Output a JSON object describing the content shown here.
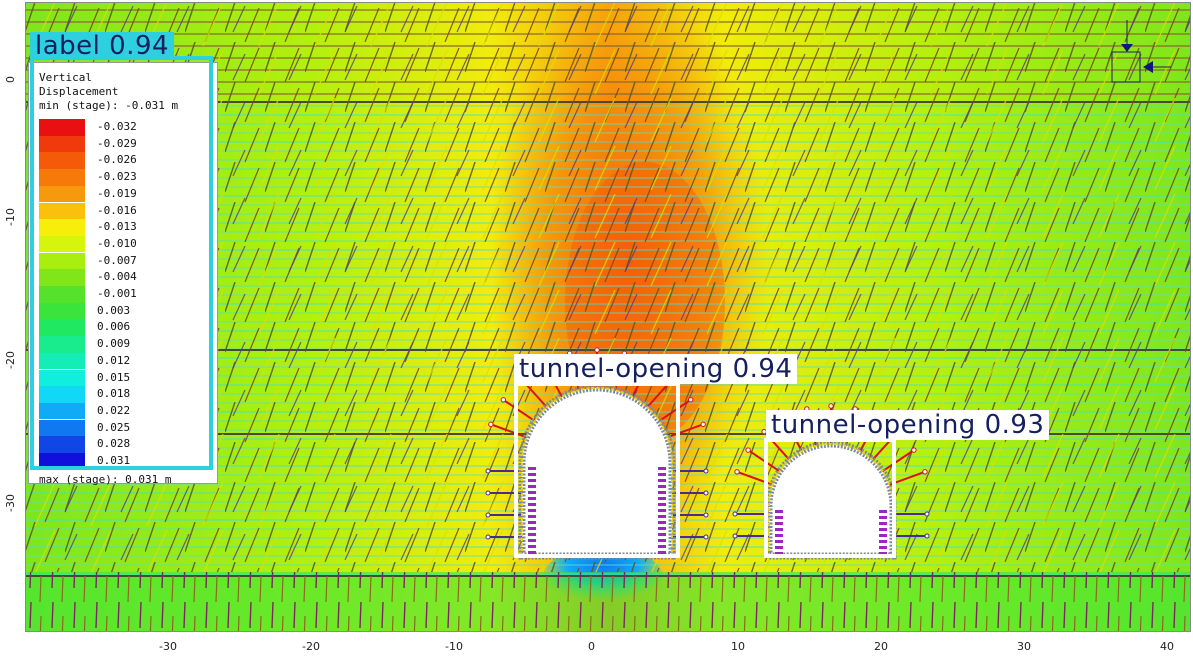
{
  "legend": {
    "title_line1": "Vertical",
    "title_line2": "Displacement",
    "title_line3": "min (stage): -0.031 m",
    "bottom_text": "max (stage): 0.031 m",
    "entries": [
      {
        "value": "-0.032",
        "color": "#e81010"
      },
      {
        "value": "-0.029",
        "color": "#f03a0c"
      },
      {
        "value": "-0.026",
        "color": "#f45a08"
      },
      {
        "value": "-0.023",
        "color": "#f57a0a"
      },
      {
        "value": "-0.019",
        "color": "#f7990c"
      },
      {
        "value": "-0.016",
        "color": "#f9c00c"
      },
      {
        "value": "-0.013",
        "color": "#f7ee0c"
      },
      {
        "value": "-0.010",
        "color": "#d6f50c"
      },
      {
        "value": "-0.007",
        "color": "#a8ef10"
      },
      {
        "value": "-0.004",
        "color": "#80e61a"
      },
      {
        "value": "-0.001",
        "color": "#56e22a"
      },
      {
        "value": "0.003",
        "color": "#3ae43a"
      },
      {
        "value": "0.006",
        "color": "#20e860"
      },
      {
        "value": "0.009",
        "color": "#18ec8c"
      },
      {
        "value": "0.012",
        "color": "#14eeb6"
      },
      {
        "value": "0.015",
        "color": "#10eede"
      },
      {
        "value": "0.018",
        "color": "#10d8f6"
      },
      {
        "value": "0.022",
        "color": "#10aaf6"
      },
      {
        "value": "0.025",
        "color": "#1078f0"
      },
      {
        "value": "0.028",
        "color": "#1046e6"
      },
      {
        "value": "0.031",
        "color": "#1010dc"
      }
    ]
  },
  "detections": {
    "label_tag": "label 0.94",
    "tunnel1_tag": "tunnel-opening 0.94",
    "tunnel2_tag": "tunnel-opening 0.93"
  },
  "axes": {
    "x_ticks": [
      "-30",
      "-20",
      "-10",
      "0",
      "10",
      "20",
      "30",
      "40"
    ],
    "y_ticks": [
      "0",
      "-10",
      "-20",
      "-30"
    ]
  }
}
